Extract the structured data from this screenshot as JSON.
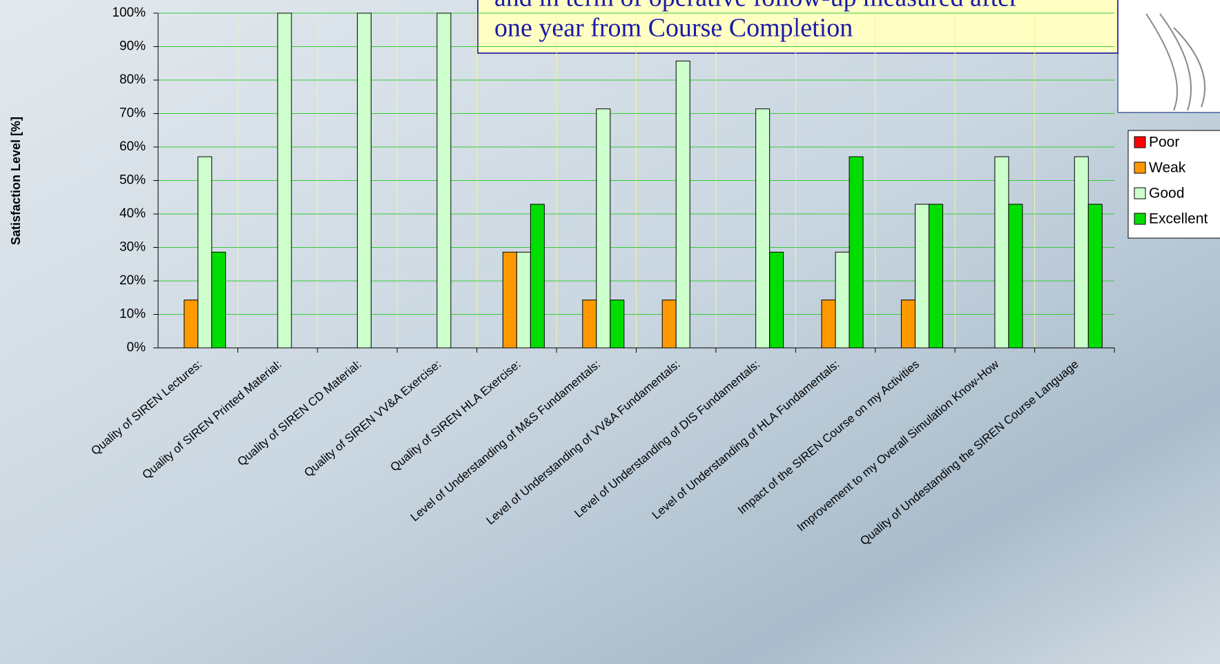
{
  "chart_data": {
    "type": "bar",
    "y_label": "Satisfaction Level [%]",
    "annotation": [
      "and in term of operative follow-up measured after",
      "one year from Course Completion"
    ],
    "categories": [
      "Quality of SIREN Lectures:",
      "Quality of SIREN Printed Material:",
      "Quality of SIREN CD Material:",
      "Quality of SIREN VV&A Exercise:",
      "Quality of SIREN HLA Exercise:",
      "Level of Understanding of M&S Fundamentals:",
      "Level of Understanding of VV&A Fundamentals:",
      "Level of Understanding of DIS Fundamentals:",
      "Level of Understanding of HLA Fundamentals:",
      "Impact of the SIREN Course on my Activities",
      "Improvement to my Overall Simulation Know-How",
      "Quality of Undestanding the SIREN Course Language"
    ],
    "series": [
      {
        "name": "Poor",
        "color": "#ff0000",
        "values": [
          0,
          0,
          0,
          0,
          0,
          0,
          0,
          0,
          0,
          0,
          0,
          0
        ]
      },
      {
        "name": "Weak",
        "color": "#ff9900",
        "values": [
          14.3,
          0,
          0,
          0,
          28.6,
          14.3,
          14.3,
          0,
          14.3,
          14.3,
          0,
          0
        ]
      },
      {
        "name": "Good",
        "color": "#ccffcc",
        "values": [
          57.1,
          100,
          100,
          100,
          28.6,
          71.4,
          85.7,
          71.4,
          28.6,
          42.9,
          57.1,
          57.1
        ]
      },
      {
        "name": "Excellent",
        "color": "#00dd00",
        "values": [
          28.6,
          0,
          0,
          0,
          42.9,
          14.3,
          0,
          28.6,
          57.1,
          42.9,
          42.9,
          42.9
        ]
      }
    ],
    "ylim": [
      0,
      100
    ],
    "yticks": [
      {
        "value": 0,
        "label": "0%"
      },
      {
        "value": 10,
        "label": "10%"
      },
      {
        "value": 20,
        "label": "20%"
      },
      {
        "value": 30,
        "label": "30%"
      },
      {
        "value": 40,
        "label": "40%"
      },
      {
        "value": 50,
        "label": "50%"
      },
      {
        "value": 60,
        "label": "60%"
      },
      {
        "value": 70,
        "label": "70%"
      },
      {
        "value": 80,
        "label": "80%"
      },
      {
        "value": 90,
        "label": "90%"
      },
      {
        "value": 100,
        "label": "100%"
      }
    ],
    "grid": true,
    "legend": "right"
  }
}
